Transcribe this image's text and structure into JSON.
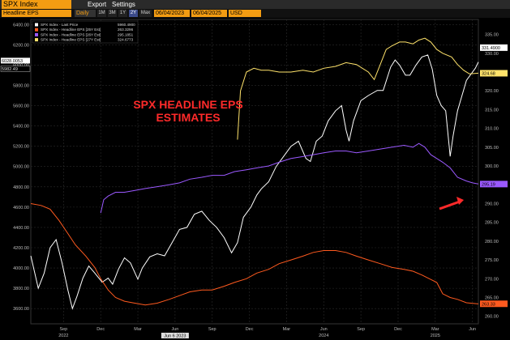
{
  "app": {
    "title": "SPX Index",
    "menu": [
      "Export",
      "Settings"
    ],
    "toolbar": {
      "security": "Headline EPS",
      "period": "Daily",
      "ranges": [
        "1M",
        "3M",
        "1Y",
        "2Y",
        "Max"
      ],
      "active_range": "2Y",
      "start_date": "06/04/2023",
      "end_date": "06/04/2025",
      "currency": "USD"
    }
  },
  "chart_data": {
    "type": "line",
    "annotation": "SPX HEADLINE EPS\nESTIMATES",
    "legend": [
      {
        "label": "SPX Index - Last Price",
        "value": "5960.4900",
        "color": "#ffffff"
      },
      {
        "label": "SPX Index - Headline EPS [25Y Est]",
        "value": "263.3296",
        "color": "#ff5a1f"
      },
      {
        "label": "SPX Index - Headline EPS [26Y Est]",
        "value": "295.1851",
        "color": "#9b59ff"
      },
      {
        "label": "SPX Index - Headline EPS [27Y Est]",
        "value": "324.6773",
        "color": "#ffe36b"
      }
    ],
    "x_ticks": [
      {
        "label": "Sep",
        "t": 2022.67
      },
      {
        "label": "Dec",
        "t": 2022.92
      },
      {
        "label": "Mar",
        "t": 2023.17
      },
      {
        "label": "Jun",
        "t": 2023.42
      },
      {
        "label": "Sep",
        "t": 2023.67
      },
      {
        "label": "Dec",
        "t": 2023.92
      },
      {
        "label": "Mar",
        "t": 2024.17
      },
      {
        "label": "Jun",
        "t": 2024.42
      },
      {
        "label": "Sep",
        "t": 2024.67
      },
      {
        "label": "Dec",
        "t": 2024.92
      },
      {
        "label": "Mar",
        "t": 2025.17
      },
      {
        "label": "Jun",
        "t": 2025.42
      }
    ],
    "year_labels": [
      {
        "label": "2022",
        "t": 2022.67
      },
      {
        "label": "2024",
        "t": 2024.42
      },
      {
        "label": "2025",
        "t": 2025.17
      }
    ],
    "x_range": [
      2022.45,
      2025.46
    ],
    "cursor_label": "Jun 6 2023",
    "left_axis": {
      "range": [
        3450,
        6450
      ],
      "ticks": [
        "3600.00",
        "3800.00",
        "4000.00",
        "4200.00",
        "4400.00",
        "4600.00",
        "4800.00",
        "5000.00",
        "5200.00",
        "5400.00",
        "5600.00",
        "5800.00",
        "6000.00",
        "6200.00",
        "6400.00"
      ],
      "flags": [
        "6028.0053",
        "5982.49"
      ]
    },
    "right_axis": {
      "range": [
        258,
        339
      ],
      "ticks": [
        "260.00",
        "265.00",
        "270.00",
        "275.00",
        "280.00",
        "285.00",
        "290.00",
        "295.00",
        "300.00",
        "305.00",
        "310.00",
        "315.00",
        "320.00",
        "325.00",
        "330.00",
        "335.00"
      ],
      "flags": [
        {
          "text": "331.4900",
          "value": 331.49,
          "color": "#ffffff"
        },
        {
          "text": "324.68",
          "value": 324.68,
          "color": "#ffe36b"
        },
        {
          "text": "295.19",
          "value": 295.19,
          "color": "#9b59ff"
        },
        {
          "text": "263.33",
          "value": 263.33,
          "color": "#ff5a1f"
        }
      ]
    },
    "series": [
      {
        "name": "SPX Index - Last Price",
        "axis": "left",
        "color": "#ffffff",
        "points": [
          [
            2022.45,
            4120
          ],
          [
            2022.5,
            3800
          ],
          [
            2022.54,
            3950
          ],
          [
            2022.58,
            4200
          ],
          [
            2022.62,
            4280
          ],
          [
            2022.66,
            4050
          ],
          [
            2022.7,
            3780
          ],
          [
            2022.73,
            3600
          ],
          [
            2022.76,
            3720
          ],
          [
            2022.8,
            3900
          ],
          [
            2022.84,
            4020
          ],
          [
            2022.88,
            3950
          ],
          [
            2022.93,
            3860
          ],
          [
            2022.97,
            3900
          ],
          [
            2023.0,
            3840
          ],
          [
            2023.04,
            3990
          ],
          [
            2023.08,
            4100
          ],
          [
            2023.12,
            4050
          ],
          [
            2023.17,
            3890
          ],
          [
            2023.2,
            4000
          ],
          [
            2023.25,
            4110
          ],
          [
            2023.3,
            4140
          ],
          [
            2023.35,
            4120
          ],
          [
            2023.4,
            4250
          ],
          [
            2023.45,
            4380
          ],
          [
            2023.5,
            4400
          ],
          [
            2023.55,
            4530
          ],
          [
            2023.6,
            4560
          ],
          [
            2023.65,
            4470
          ],
          [
            2023.7,
            4400
          ],
          [
            2023.75,
            4300
          ],
          [
            2023.8,
            4150
          ],
          [
            2023.84,
            4250
          ],
          [
            2023.88,
            4500
          ],
          [
            2023.93,
            4600
          ],
          [
            2023.97,
            4720
          ],
          [
            2024.0,
            4780
          ],
          [
            2024.05,
            4850
          ],
          [
            2024.1,
            5000
          ],
          [
            2024.15,
            5100
          ],
          [
            2024.2,
            5200
          ],
          [
            2024.25,
            5250
          ],
          [
            2024.3,
            5080
          ],
          [
            2024.33,
            5050
          ],
          [
            2024.37,
            5250
          ],
          [
            2024.41,
            5300
          ],
          [
            2024.45,
            5450
          ],
          [
            2024.5,
            5550
          ],
          [
            2024.54,
            5600
          ],
          [
            2024.57,
            5360
          ],
          [
            2024.59,
            5250
          ],
          [
            2024.62,
            5450
          ],
          [
            2024.67,
            5650
          ],
          [
            2024.72,
            5700
          ],
          [
            2024.78,
            5750
          ],
          [
            2024.82,
            5750
          ],
          [
            2024.87,
            5980
          ],
          [
            2024.9,
            6050
          ],
          [
            2024.93,
            6000
          ],
          [
            2024.97,
            5900
          ],
          [
            2025.0,
            5900
          ],
          [
            2025.04,
            6000
          ],
          [
            2025.08,
            6080
          ],
          [
            2025.12,
            6100
          ],
          [
            2025.15,
            5960
          ],
          [
            2025.18,
            5700
          ],
          [
            2025.21,
            5600
          ],
          [
            2025.24,
            5550
          ],
          [
            2025.27,
            5100
          ],
          [
            2025.29,
            5300
          ],
          [
            2025.32,
            5550
          ],
          [
            2025.35,
            5700
          ],
          [
            2025.38,
            5850
          ],
          [
            2025.41,
            5910
          ],
          [
            2025.44,
            5970
          ],
          [
            2025.46,
            6030
          ]
        ]
      },
      {
        "name": "SPX Index - Headline EPS [25Y Est]",
        "axis": "right",
        "color": "#ff5a1f",
        "points": [
          [
            2022.45,
            290
          ],
          [
            2022.52,
            289.5
          ],
          [
            2022.58,
            288.5
          ],
          [
            2022.64,
            285.5
          ],
          [
            2022.7,
            282
          ],
          [
            2022.75,
            279
          ],
          [
            2022.82,
            276
          ],
          [
            2022.88,
            273
          ],
          [
            2022.92,
            270
          ],
          [
            2022.97,
            267
          ],
          [
            2023.02,
            265
          ],
          [
            2023.08,
            264
          ],
          [
            2023.15,
            263.5
          ],
          [
            2023.22,
            263
          ],
          [
            2023.3,
            263.5
          ],
          [
            2023.38,
            264.5
          ],
          [
            2023.45,
            265.5
          ],
          [
            2023.52,
            266.5
          ],
          [
            2023.6,
            267
          ],
          [
            2023.67,
            267
          ],
          [
            2023.75,
            268
          ],
          [
            2023.82,
            269
          ],
          [
            2023.9,
            270
          ],
          [
            2023.97,
            271.5
          ],
          [
            2024.05,
            272.5
          ],
          [
            2024.12,
            274
          ],
          [
            2024.2,
            275
          ],
          [
            2024.28,
            276
          ],
          [
            2024.35,
            277
          ],
          [
            2024.42,
            277.5
          ],
          [
            2024.5,
            277.5
          ],
          [
            2024.57,
            277
          ],
          [
            2024.64,
            276
          ],
          [
            2024.72,
            275
          ],
          [
            2024.8,
            274
          ],
          [
            2024.88,
            273
          ],
          [
            2024.96,
            272.5
          ],
          [
            2025.02,
            272
          ],
          [
            2025.08,
            271
          ],
          [
            2025.13,
            270
          ],
          [
            2025.18,
            269
          ],
          [
            2025.22,
            266
          ],
          [
            2025.27,
            265
          ],
          [
            2025.32,
            264.5
          ],
          [
            2025.38,
            263.6
          ],
          [
            2025.46,
            263.3
          ]
        ]
      },
      {
        "name": "SPX Index - Headline EPS [26Y Est]",
        "axis": "right",
        "color": "#9b59ff",
        "points": [
          [
            2022.92,
            287.5
          ],
          [
            2022.94,
            291
          ],
          [
            2022.97,
            292
          ],
          [
            2023.02,
            293
          ],
          [
            2023.08,
            293
          ],
          [
            2023.15,
            293.5
          ],
          [
            2023.22,
            294
          ],
          [
            2023.3,
            294.5
          ],
          [
            2023.38,
            295
          ],
          [
            2023.45,
            295.5
          ],
          [
            2023.52,
            296.5
          ],
          [
            2023.6,
            297
          ],
          [
            2023.67,
            297.5
          ],
          [
            2023.75,
            297.5
          ],
          [
            2023.82,
            298.5
          ],
          [
            2023.9,
            299
          ],
          [
            2023.97,
            299.5
          ],
          [
            2024.05,
            300
          ],
          [
            2024.12,
            301
          ],
          [
            2024.2,
            302
          ],
          [
            2024.28,
            302.5
          ],
          [
            2024.35,
            303
          ],
          [
            2024.42,
            303.5
          ],
          [
            2024.5,
            304
          ],
          [
            2024.57,
            304
          ],
          [
            2024.64,
            303.5
          ],
          [
            2024.72,
            304
          ],
          [
            2024.8,
            304.5
          ],
          [
            2024.88,
            305
          ],
          [
            2024.96,
            305.5
          ],
          [
            2025.02,
            305
          ],
          [
            2025.06,
            306
          ],
          [
            2025.1,
            305
          ],
          [
            2025.14,
            303
          ],
          [
            2025.18,
            302
          ],
          [
            2025.22,
            301
          ],
          [
            2025.27,
            299.5
          ],
          [
            2025.32,
            297
          ],
          [
            2025.38,
            296
          ],
          [
            2025.42,
            295.5
          ],
          [
            2025.46,
            295.2
          ]
        ]
      },
      {
        "name": "SPX Index - Headline EPS [27Y Est]",
        "axis": "right",
        "color": "#ffe36b",
        "points": [
          [
            2023.84,
            307
          ],
          [
            2023.86,
            320
          ],
          [
            2023.9,
            325
          ],
          [
            2023.95,
            326
          ],
          [
            2024.0,
            325.5
          ],
          [
            2024.05,
            325.5
          ],
          [
            2024.12,
            325
          ],
          [
            2024.2,
            325
          ],
          [
            2024.28,
            325.5
          ],
          [
            2024.35,
            325
          ],
          [
            2024.42,
            326
          ],
          [
            2024.5,
            326.5
          ],
          [
            2024.57,
            327.5
          ],
          [
            2024.64,
            327
          ],
          [
            2024.72,
            325
          ],
          [
            2024.76,
            323
          ],
          [
            2024.8,
            327
          ],
          [
            2024.84,
            331
          ],
          [
            2024.88,
            332
          ],
          [
            2024.93,
            333
          ],
          [
            2024.97,
            333
          ],
          [
            2025.02,
            332.5
          ],
          [
            2025.06,
            333.5
          ],
          [
            2025.1,
            334
          ],
          [
            2025.14,
            333
          ],
          [
            2025.18,
            331
          ],
          [
            2025.22,
            330
          ],
          [
            2025.28,
            329
          ],
          [
            2025.32,
            327
          ],
          [
            2025.36,
            325.5
          ],
          [
            2025.4,
            324.5
          ],
          [
            2025.46,
            324.7
          ]
        ]
      }
    ]
  }
}
